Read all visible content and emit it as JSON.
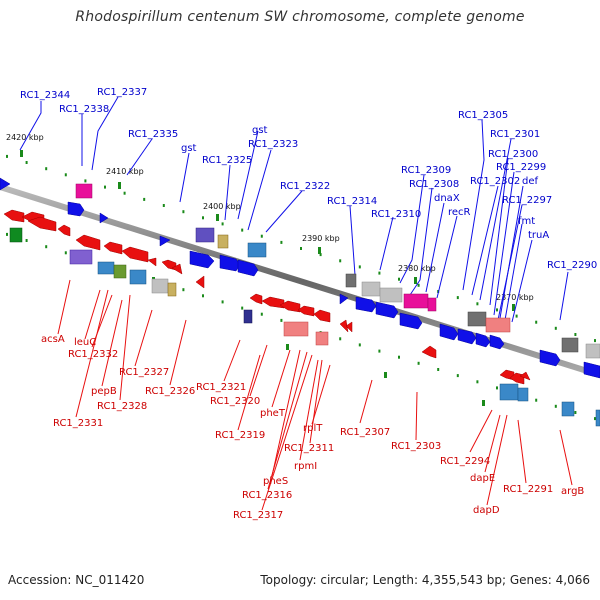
{
  "title": "Rhodospirillum centenum SW chromosome, complete genome",
  "footer": {
    "accession": "Accession: NC_011420",
    "summary": "Topology: circular; Length: 4,355,543 bp; Genes: 4,066"
  },
  "colors": {
    "forward": "#1010e8",
    "reverse": "#e81010",
    "axis": "#777777",
    "tick": "#1a8a1a"
  },
  "ticks": [
    "2420 kbp",
    "2410 kbp",
    "2400 kbp",
    "2390 kbp",
    "2380 kbp",
    "2370 kbp"
  ],
  "top_labels": [
    "RC1_2344",
    "RC1_2338",
    "RC1_2337",
    "RC1_2335",
    "gst",
    "RC1_2325",
    "gst",
    "RC1_2323",
    "RC1_2322",
    "RC1_2314",
    "RC1_2310",
    "RC1_2309",
    "RC1_2308",
    "dnaX",
    "recR",
    "RC1_2305",
    "RC1_2302",
    "RC1_2301",
    "RC1_2300",
    "RC1_2299",
    "def",
    "RC1_2297",
    "fmt",
    "truA",
    "RC1_2290"
  ],
  "bottom_labels": [
    "acsA",
    "leuC",
    "RC1_2332",
    "pepB",
    "RC1_2327",
    "RC1_2328",
    "RC1_2331",
    "RC1_2326",
    "RC1_2321",
    "RC1_2320",
    "pheT",
    "RC1_2319",
    "rplT",
    "RC1_2311",
    "rpmI",
    "pheS",
    "RC1_2316",
    "RC1_2317",
    "RC1_2307",
    "RC1_2303",
    "RC1_2294",
    "dapE",
    "dapD",
    "RC1_2291",
    "argB"
  ]
}
